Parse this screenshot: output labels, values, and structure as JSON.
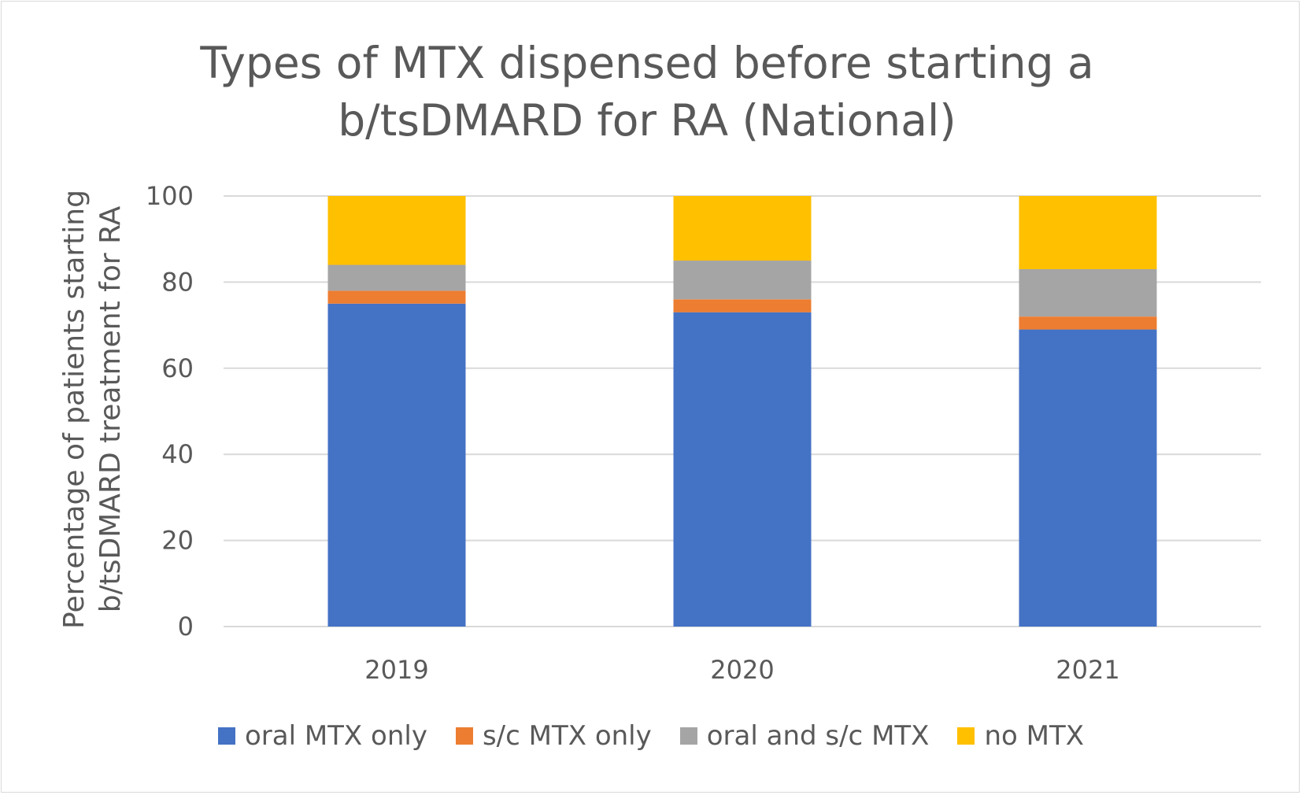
{
  "chart_data": {
    "type": "bar",
    "stacked": true,
    "title": "Types of MTX dispensed before starting a b/tsDMARD for RA (National)",
    "xlabel": "",
    "ylabel": "Percentage of patients starting b/tsDMARD treatment for RA",
    "categories": [
      "2019",
      "2020",
      "2021"
    ],
    "ylim": [
      0,
      100
    ],
    "yticks": [
      0,
      20,
      40,
      60,
      80,
      100
    ],
    "grid": true,
    "legend_position": "bottom",
    "series": [
      {
        "name": "oral MTX only",
        "color": "#4472C4",
        "values": [
          75,
          73,
          69
        ]
      },
      {
        "name": "s/c MTX only",
        "color": "#ED7D31",
        "values": [
          3,
          3,
          3
        ]
      },
      {
        "name": "oral and s/c MTX",
        "color": "#A5A5A5",
        "values": [
          6,
          9,
          11
        ]
      },
      {
        "name": "no MTX",
        "color": "#FFC000",
        "values": [
          16,
          15,
          17
        ]
      }
    ]
  }
}
